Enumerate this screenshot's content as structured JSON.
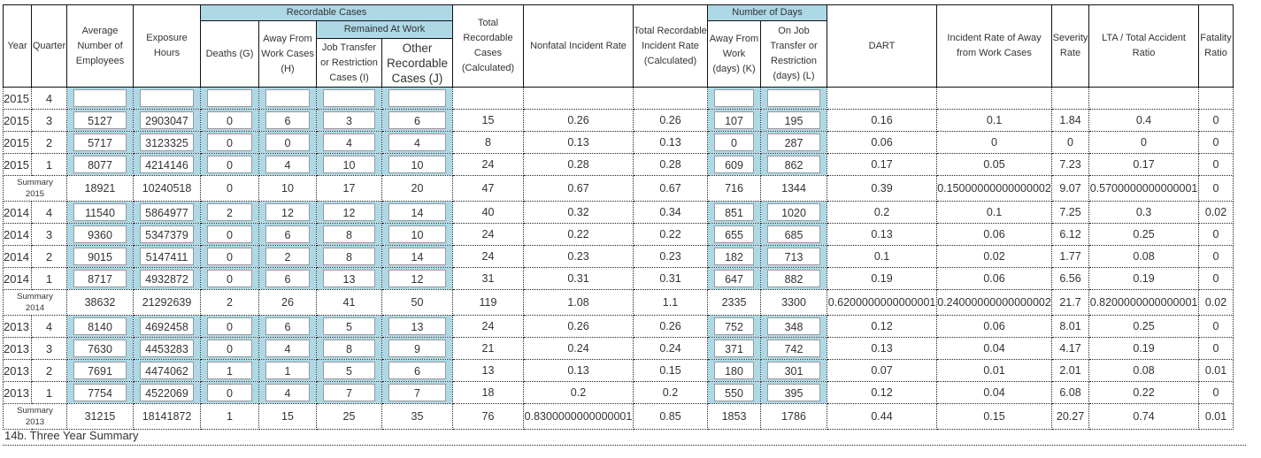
{
  "headers": {
    "year": "Year",
    "quarter": "Quarter",
    "avg_employees": "Average Number of Employees",
    "exposure_hours": "Exposure Hours",
    "recordable_cases": "Recordable Cases",
    "deaths": "Deaths (G)",
    "away_cases": "Away From Work Cases (H)",
    "remained_at_work": "Remained At Work",
    "job_transfer": "Job Transfer or Restriction Cases (I)",
    "other_recordable": "Other Recordable Cases (J)",
    "total_recordable": "Total Recordable Cases (Calculated)",
    "nonfatal_rate": "Nonfatal Incident Rate",
    "trir": "Total Recordable Incident Rate (Calculated)",
    "number_of_days": "Number of Days",
    "away_days": "Away From Work (days) (K)",
    "restriction_days": "On Job Transfer or Restriction (days) (L)",
    "dart": "DART",
    "away_rate": "Incident Rate of Away from Work Cases",
    "severity": "Severity Rate",
    "lta_ratio": "LTA / Total Accident Ratio",
    "fatality": "Fatality Ratio"
  },
  "rows": [
    {
      "year": "2015",
      "quarter": "4",
      "v": [
        "",
        "",
        "",
        "",
        "",
        "",
        "",
        "",
        "",
        "",
        "",
        "",
        "",
        "",
        "",
        ""
      ]
    },
    {
      "year": "2015",
      "quarter": "3",
      "v": [
        "5127",
        "2903047",
        "0",
        "6",
        "3",
        "6",
        "15",
        "0.26",
        "0.26",
        "107",
        "195",
        "0.16",
        "0.1",
        "1.84",
        "0.4",
        "0"
      ]
    },
    {
      "year": "2015",
      "quarter": "2",
      "v": [
        "5717",
        "3123325",
        "0",
        "0",
        "4",
        "4",
        "8",
        "0.13",
        "0.13",
        "0",
        "287",
        "0.06",
        "0",
        "0",
        "0",
        "0"
      ]
    },
    {
      "year": "2015",
      "quarter": "1",
      "v": [
        "8077",
        "4214146",
        "0",
        "4",
        "10",
        "10",
        "24",
        "0.28",
        "0.28",
        "609",
        "862",
        "0.17",
        "0.05",
        "7.23",
        "0.17",
        "0"
      ]
    },
    {
      "summary": "Summary",
      "year": "2015",
      "v": [
        "18921",
        "10240518",
        "0",
        "10",
        "17",
        "20",
        "47",
        "0.67",
        "0.67",
        "716",
        "1344",
        "0.39",
        "0.15000000000000002",
        "9.07",
        "0.5700000000000001",
        "0"
      ]
    },
    {
      "year": "2014",
      "quarter": "4",
      "v": [
        "11540",
        "5864977",
        "2",
        "12",
        "12",
        "14",
        "40",
        "0.32",
        "0.34",
        "851",
        "1020",
        "0.2",
        "0.1",
        "7.25",
        "0.3",
        "0.02"
      ]
    },
    {
      "year": "2014",
      "quarter": "3",
      "v": [
        "9360",
        "5347379",
        "0",
        "6",
        "8",
        "10",
        "24",
        "0.22",
        "0.22",
        "655",
        "685",
        "0.13",
        "0.06",
        "6.12",
        "0.25",
        "0"
      ]
    },
    {
      "year": "2014",
      "quarter": "2",
      "v": [
        "9015",
        "5147411",
        "0",
        "2",
        "8",
        "14",
        "24",
        "0.23",
        "0.23",
        "182",
        "713",
        "0.1",
        "0.02",
        "1.77",
        "0.08",
        "0"
      ]
    },
    {
      "year": "2014",
      "quarter": "1",
      "v": [
        "8717",
        "4932872",
        "0",
        "6",
        "13",
        "12",
        "31",
        "0.31",
        "0.31",
        "647",
        "882",
        "0.19",
        "0.06",
        "6.56",
        "0.19",
        "0"
      ]
    },
    {
      "summary": "Summary",
      "year": "2014",
      "v": [
        "38632",
        "21292639",
        "2",
        "26",
        "41",
        "50",
        "119",
        "1.08",
        "1.1",
        "2335",
        "3300",
        "0.6200000000000001",
        "0.24000000000000002",
        "21.7",
        "0.8200000000000001",
        "0.02"
      ]
    },
    {
      "year": "2013",
      "quarter": "4",
      "v": [
        "8140",
        "4692458",
        "0",
        "6",
        "5",
        "13",
        "24",
        "0.26",
        "0.26",
        "752",
        "348",
        "0.12",
        "0.06",
        "8.01",
        "0.25",
        "0"
      ]
    },
    {
      "year": "2013",
      "quarter": "3",
      "v": [
        "7630",
        "4453283",
        "0",
        "4",
        "8",
        "9",
        "21",
        "0.24",
        "0.24",
        "371",
        "742",
        "0.13",
        "0.04",
        "4.17",
        "0.19",
        "0"
      ]
    },
    {
      "year": "2013",
      "quarter": "2",
      "v": [
        "7691",
        "4474062",
        "1",
        "1",
        "5",
        "6",
        "13",
        "0.13",
        "0.15",
        "180",
        "301",
        "0.07",
        "0.01",
        "2.01",
        "0.08",
        "0.01"
      ]
    },
    {
      "year": "2013",
      "quarter": "1",
      "v": [
        "7754",
        "4522069",
        "0",
        "4",
        "7",
        "7",
        "18",
        "0.2",
        "0.2",
        "550",
        "395",
        "0.12",
        "0.04",
        "6.08",
        "0.22",
        "0"
      ]
    },
    {
      "summary": "Summary",
      "year": "2013",
      "v": [
        "31215",
        "18141872",
        "1",
        "15",
        "25",
        "35",
        "76",
        "0.8300000000000001",
        "0.85",
        "1853",
        "1786",
        "0.44",
        "0.15",
        "20.27",
        "0.74",
        "0.01"
      ]
    }
  ],
  "footer": "14b. Three Year Summary",
  "colors": {
    "input_cell_bg": "#add8e6",
    "header_group_bg": "#add8e6"
  }
}
